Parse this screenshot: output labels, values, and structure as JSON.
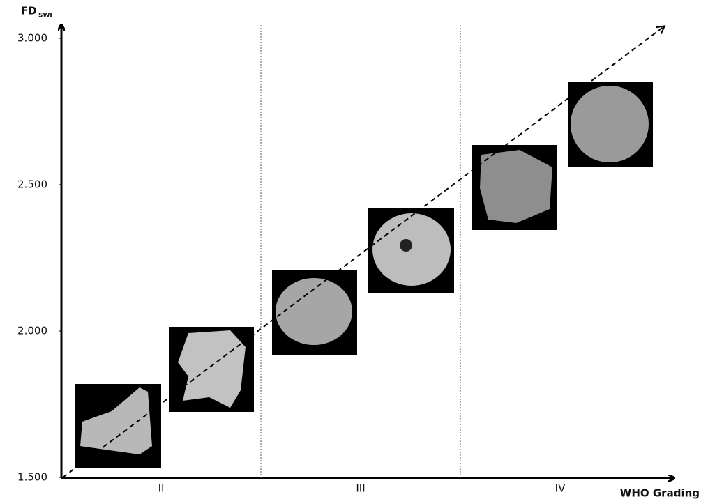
{
  "chart_data": {
    "type": "category-panels",
    "y_label": "FD",
    "y_label_sub": "SWI",
    "x_label": "WHO Grading",
    "categories": [
      "II",
      "III",
      "IV"
    ],
    "ylim": [
      1.5,
      3.0
    ],
    "yticks": [
      {
        "value": 1.5,
        "label": "1.500"
      },
      {
        "value": 2.0,
        "label": "2.000"
      },
      {
        "value": 2.5,
        "label": "2.500"
      },
      {
        "value": 3.0,
        "label": "3.000"
      }
    ]
  }
}
